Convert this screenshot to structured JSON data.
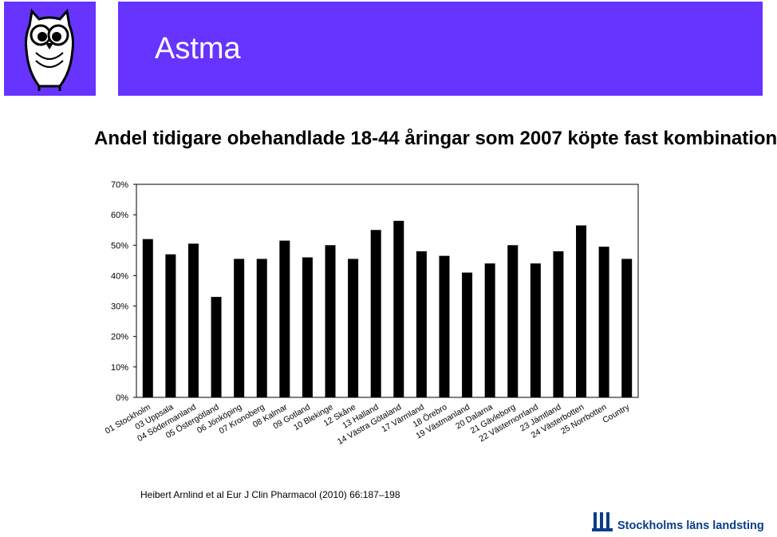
{
  "slide": {
    "title": "Astma",
    "subtitle": "Andel tidigare obehandlade 18-44 åringar som 2007 köpte fast kombination",
    "citation": "Heibert Arnlind et al Eur J Clin Pharmacol (2010) 66:187–198",
    "logo_text": "Stockholms läns landsting"
  },
  "colors": {
    "header": "#6633ff",
    "bar": "#000000",
    "logo": "#0a3d8a"
  },
  "chart_data": {
    "type": "bar",
    "categories": [
      "01 Stockholm",
      "03 Uppsala",
      "04 Södermanland",
      "05 Östergötland",
      "06 Jönköping",
      "07 Kronoberg",
      "08 Kalmar",
      "09 Gotland",
      "10 Blekinge",
      "12 Skåne",
      "13 Halland",
      "14 Västra Götaland",
      "17 Värmland",
      "18 Örebro",
      "19 Västmanland",
      "20 Dalarna",
      "21 Gävleborg",
      "22 Västernorrland",
      "23 Jämtland",
      "24 Västerbotten",
      "25 Norrbotten",
      "Country"
    ],
    "values": [
      52,
      47,
      50.5,
      33,
      45.5,
      45.5,
      51.5,
      46,
      50,
      45.5,
      55,
      58,
      48,
      46.5,
      41,
      44,
      50,
      44,
      48,
      56.5,
      49.5,
      45.5
    ],
    "value_unit": "%",
    "yticks": [
      "0%",
      "10%",
      "20%",
      "30%",
      "40%",
      "50%",
      "60%",
      "70%"
    ],
    "ylim": [
      0,
      70
    ],
    "grid": false,
    "legend": "none"
  }
}
